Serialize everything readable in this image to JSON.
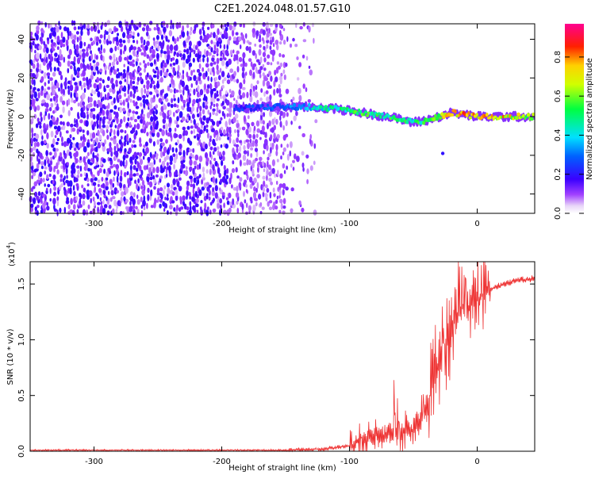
{
  "title": "C2E1.2024.048.01.57.G10",
  "chart_data": [
    {
      "type": "heatmap",
      "xlabel": "Height of straight line (km)",
      "ylabel": "Frequency (Hz)",
      "xlim": [
        -350,
        45
      ],
      "ylim": [
        -50,
        48
      ],
      "xticks": [
        -300,
        -200,
        -100,
        0
      ],
      "yticks": [
        -40,
        -20,
        0,
        20,
        40
      ],
      "colorbar": {
        "label": "Normalized spectral amplitude",
        "range": [
          0,
          0.97
        ],
        "ticks": [
          0.0,
          0.2,
          0.4,
          0.6,
          0.8
        ]
      },
      "signal_track": {
        "x": [
          -190,
          -170,
          -150,
          -130,
          -110,
          -90,
          -70,
          -50,
          -40,
          -30,
          -20,
          -10,
          0,
          20,
          45
        ],
        "frequency": [
          4,
          5,
          5,
          5,
          4,
          2,
          0,
          -3,
          -2,
          0,
          2,
          1,
          0,
          0,
          0
        ],
        "amplitude": [
          0.25,
          0.3,
          0.35,
          0.45,
          0.55,
          0.6,
          0.6,
          0.55,
          0.6,
          0.75,
          0.85,
          0.9,
          0.9,
          0.85,
          0.7
        ]
      },
      "noise_region": {
        "x": [
          -350,
          -150
        ],
        "amplitude": [
          0.05,
          0.2
        ]
      }
    },
    {
      "type": "line",
      "xlabel": "Height of straight line (km)",
      "ylabel": "SNR (10 * v/v)",
      "scale_label": "(x10",
      "scale_exp": "4",
      "scale_close": ")",
      "xlim": [
        -350,
        45
      ],
      "ylim": [
        0,
        1.7
      ],
      "xticks": [
        -300,
        -200,
        -100,
        0
      ],
      "yticks": [
        0.0,
        0.5,
        1.0,
        1.5
      ],
      "series": [
        {
          "color": "#ee3333",
          "x": [
            -350,
            -300,
            -250,
            -200,
            -150,
            -120,
            -100,
            -90,
            -80,
            -70,
            -60,
            -50,
            -45,
            -40,
            -35,
            -30,
            -25,
            -20,
            -15,
            -10,
            -5,
            0,
            10,
            20,
            30,
            45
          ],
          "y": [
            0.01,
            0.01,
            0.01,
            0.01,
            0.01,
            0.02,
            0.05,
            0.1,
            0.15,
            0.15,
            0.15,
            0.2,
            0.25,
            0.35,
            0.6,
            0.8,
            0.95,
            1.1,
            1.25,
            1.3,
            1.3,
            1.35,
            1.45,
            1.5,
            1.53,
            1.55
          ]
        }
      ]
    }
  ]
}
